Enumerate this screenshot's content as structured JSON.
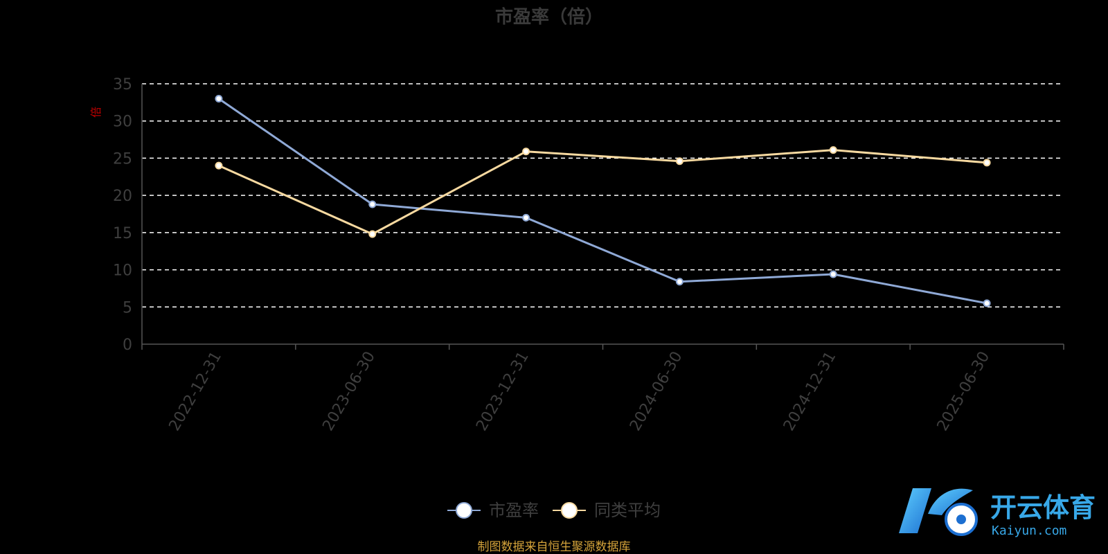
{
  "chart_data": {
    "type": "line",
    "title": "市盈率（倍）",
    "ylabel": "倍",
    "xlabel": "",
    "ylim": [
      0,
      35
    ],
    "yticks": [
      0,
      5,
      10,
      15,
      20,
      25,
      30,
      35
    ],
    "grid": true,
    "legend_position": "bottom-center",
    "categories": [
      "2022-12-31",
      "2023-06-30",
      "2023-12-31",
      "2024-06-30",
      "2024-12-31",
      "2025-06-30"
    ],
    "series": [
      {
        "name": "市盈率",
        "color": "#8fa9d6",
        "values": [
          33.0,
          18.8,
          17.0,
          8.4,
          9.4,
          5.5
        ]
      },
      {
        "name": "同类平均",
        "color": "#f7d9a0",
        "values": [
          24.0,
          14.8,
          25.9,
          24.6,
          26.1,
          24.4
        ]
      }
    ]
  },
  "source_note": "制图数据来自恒生聚源数据库",
  "watermark": {
    "brand": "开云体育",
    "url": "Kaiyun.com",
    "logo_letter": "K"
  },
  "colors": {
    "background": "#000000",
    "grid": "#ffffff",
    "axis": "#555555",
    "source": "#d4a33a",
    "watermark": "#38a8e8"
  }
}
